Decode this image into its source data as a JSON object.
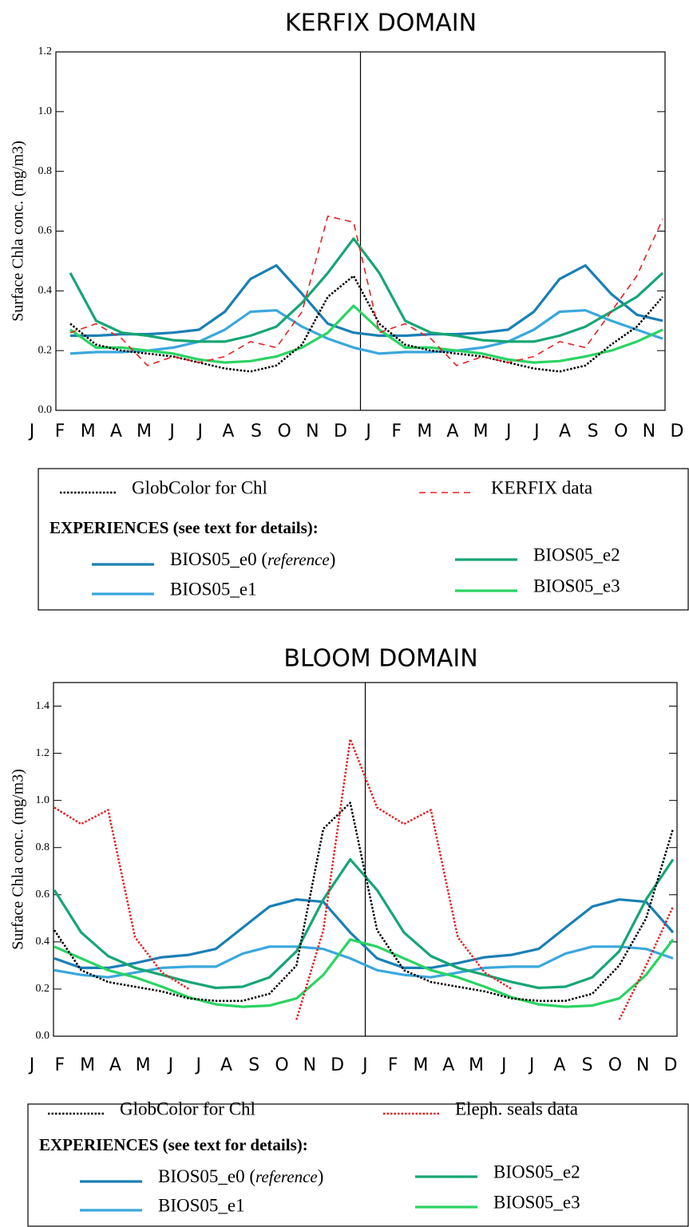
{
  "chart_data": [
    {
      "type": "line",
      "title": "KERFIX DOMAIN",
      "y_label": "Surface Chla conc. (mg/m3)",
      "categories": [
        "J",
        "F",
        "M",
        "A",
        "M",
        "J",
        "J",
        "A",
        "S",
        "O",
        "N",
        "D",
        "J",
        "F",
        "M",
        "A",
        "M",
        "J",
        "J",
        "A",
        "S",
        "O",
        "N",
        "D"
      ],
      "ylim": [
        0,
        1.2
      ],
      "yticks": [
        {
          "value": 0,
          "label": "0.0"
        },
        0.2,
        0.4,
        0.6,
        0.8,
        {
          "value": 1,
          "label": "1.0"
        },
        1.2
      ],
      "legend_heading": "EXPERIENCES (see text for details):",
      "series": [
        {
          "name": "GlobColor for Chl",
          "color": "#000000",
          "dash": "dotted",
          "values": [
            0.29,
            0.22,
            0.2,
            0.19,
            0.18,
            0.16,
            0.14,
            0.13,
            0.15,
            0.22,
            0.38,
            0.45,
            0.29,
            0.22,
            0.2,
            0.19,
            0.18,
            0.16,
            0.14,
            0.13,
            0.15,
            0.22,
            0.28,
            0.38
          ]
        },
        {
          "name": "KERFIX data",
          "color": "#e52222",
          "dash": "dashed",
          "values": [
            0.26,
            0.29,
            0.24,
            0.15,
            0.18,
            0.16,
            0.18,
            0.23,
            0.21,
            0.33,
            0.65,
            0.63,
            0.26,
            0.29,
            0.24,
            0.15,
            0.18,
            0.16,
            0.18,
            0.23,
            0.21,
            0.33,
            0.45,
            0.64
          ]
        },
        {
          "name": "BIOS05_e0 (reference)",
          "color": "#1a7fb5",
          "dash": "solid",
          "values": [
            0.25,
            0.25,
            0.255,
            0.255,
            0.26,
            0.27,
            0.33,
            0.44,
            0.485,
            0.39,
            0.29,
            0.26,
            0.25,
            0.25,
            0.255,
            0.255,
            0.26,
            0.27,
            0.33,
            0.44,
            0.485,
            0.39,
            0.32,
            0.3
          ]
        },
        {
          "name": "BIOS05_e1",
          "color": "#3aa7dd",
          "dash": "solid",
          "values": [
            0.19,
            0.195,
            0.195,
            0.2,
            0.21,
            0.23,
            0.27,
            0.33,
            0.335,
            0.28,
            0.24,
            0.21,
            0.19,
            0.195,
            0.195,
            0.2,
            0.21,
            0.23,
            0.27,
            0.33,
            0.335,
            0.3,
            0.27,
            0.24
          ]
        },
        {
          "name": "BIOS05_e2",
          "color": "#17a673",
          "dash": "solid",
          "values": [
            0.46,
            0.3,
            0.26,
            0.25,
            0.235,
            0.23,
            0.23,
            0.25,
            0.28,
            0.36,
            0.46,
            0.575,
            0.46,
            0.3,
            0.26,
            0.25,
            0.235,
            0.23,
            0.23,
            0.25,
            0.28,
            0.33,
            0.38,
            0.46
          ]
        },
        {
          "name": "BIOS05_e3",
          "color": "#2ad462",
          "dash": "solid",
          "values": [
            0.27,
            0.21,
            0.21,
            0.2,
            0.19,
            0.17,
            0.16,
            0.165,
            0.18,
            0.21,
            0.26,
            0.35,
            0.27,
            0.21,
            0.21,
            0.2,
            0.19,
            0.17,
            0.16,
            0.165,
            0.18,
            0.2,
            0.23,
            0.27
          ]
        }
      ]
    },
    {
      "type": "line",
      "title": "BLOOM DOMAIN",
      "y_label": "Surface Chla conc. (mg/m3)",
      "categories": [
        "J",
        "F",
        "M",
        "A",
        "M",
        "J",
        "J",
        "A",
        "S",
        "O",
        "N",
        "D",
        "J",
        "F",
        "M",
        "A",
        "M",
        "J",
        "J",
        "A",
        "S",
        "O",
        "N",
        "D"
      ],
      "ylim": [
        0,
        1.5
      ],
      "yticks": [
        {
          "value": 0,
          "label": "0.0"
        },
        0.2,
        0.4,
        0.6,
        0.8,
        {
          "value": 1,
          "label": "1.0"
        },
        1.2,
        1.4
      ],
      "legend_heading": "EXPERIENCES (see text for details):",
      "series": [
        {
          "name": "GlobColor for Chl",
          "color": "#000000",
          "dash": "dotted",
          "values": [
            0.45,
            0.28,
            0.23,
            0.21,
            0.19,
            0.16,
            0.15,
            0.15,
            0.18,
            0.3,
            0.88,
            0.99,
            0.45,
            0.28,
            0.23,
            0.21,
            0.19,
            0.16,
            0.15,
            0.15,
            0.18,
            0.3,
            0.5,
            0.88
          ]
        },
        {
          "name": "Eleph. seals data",
          "color": "#e52222",
          "dash": "dotted",
          "values": [
            0.97,
            0.9,
            0.96,
            0.42,
            0.27,
            0.2,
            null,
            null,
            null,
            0.07,
            0.45,
            1.26,
            0.97,
            0.9,
            0.96,
            0.42,
            0.27,
            0.2,
            null,
            null,
            null,
            0.07,
            0.3,
            0.55
          ]
        },
        {
          "name": "BIOS05_e0 (reference)",
          "color": "#1a7fb5",
          "dash": "solid",
          "values": [
            0.33,
            0.29,
            0.29,
            0.31,
            0.335,
            0.345,
            0.37,
            0.46,
            0.55,
            0.58,
            0.57,
            0.44,
            0.33,
            0.29,
            0.29,
            0.31,
            0.335,
            0.345,
            0.37,
            0.46,
            0.55,
            0.58,
            0.57,
            0.44
          ]
        },
        {
          "name": "BIOS05_e1",
          "color": "#3aa7dd",
          "dash": "solid",
          "values": [
            0.28,
            0.26,
            0.25,
            0.27,
            0.29,
            0.295,
            0.295,
            0.35,
            0.38,
            0.38,
            0.37,
            0.33,
            0.28,
            0.26,
            0.25,
            0.27,
            0.29,
            0.295,
            0.295,
            0.35,
            0.38,
            0.38,
            0.37,
            0.33
          ]
        },
        {
          "name": "BIOS05_e2",
          "color": "#17a673",
          "dash": "solid",
          "values": [
            0.62,
            0.44,
            0.34,
            0.29,
            0.26,
            0.23,
            0.205,
            0.21,
            0.25,
            0.36,
            0.58,
            0.75,
            0.62,
            0.44,
            0.34,
            0.29,
            0.26,
            0.23,
            0.205,
            0.21,
            0.25,
            0.36,
            0.58,
            0.75
          ]
        },
        {
          "name": "BIOS05_e3",
          "color": "#2ad462",
          "dash": "solid",
          "values": [
            0.38,
            0.33,
            0.28,
            0.25,
            0.21,
            0.165,
            0.135,
            0.125,
            0.13,
            0.16,
            0.26,
            0.41,
            0.38,
            0.33,
            0.28,
            0.25,
            0.21,
            0.165,
            0.135,
            0.125,
            0.13,
            0.16,
            0.26,
            0.41
          ]
        }
      ]
    }
  ]
}
